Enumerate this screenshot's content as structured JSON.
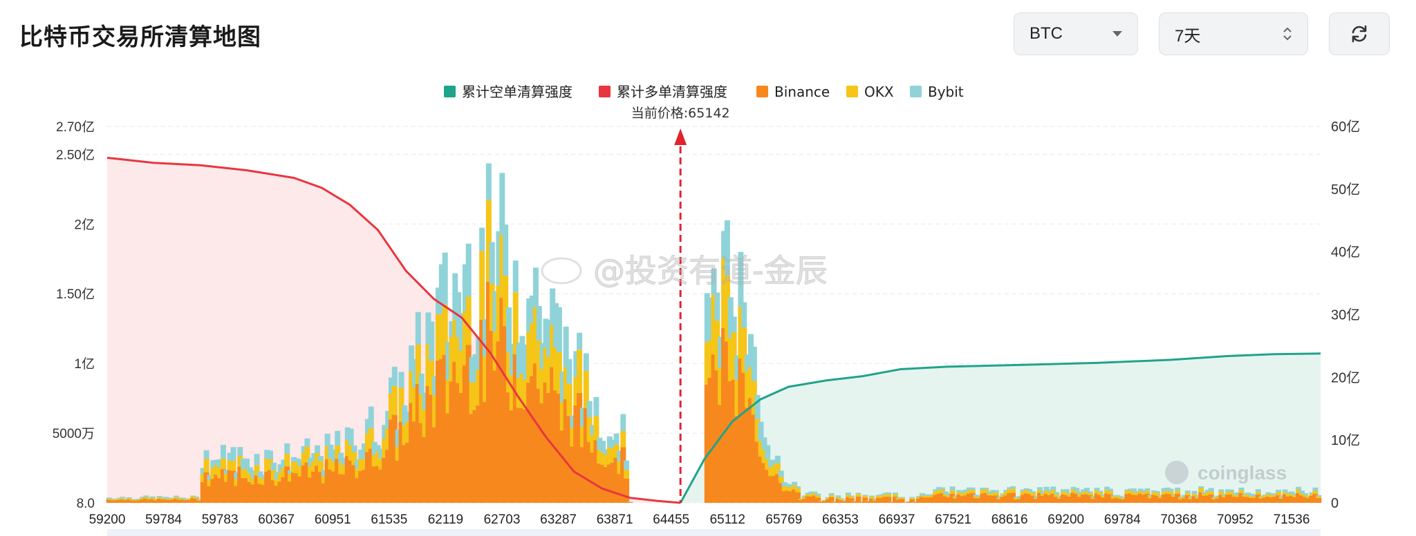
{
  "page": {
    "title": "比特币交易所清算地图",
    "symbol_select": {
      "value": "BTC",
      "icon": "chevron-down-icon"
    },
    "range_select": {
      "value": "7天",
      "icon": "updown-chevron-icon"
    },
    "refresh_button": {
      "icon": "refresh-icon"
    }
  },
  "watermark": {
    "text": "@投资有道-金辰",
    "icon": "weibo-icon"
  },
  "brand": {
    "text": "coinglass",
    "icon": "coinglass-logo-icon"
  },
  "colors": {
    "short_line": "#1fa38a",
    "long_line": "#e8363f",
    "binance": "#f7881e",
    "okx": "#f5c518",
    "bybit": "#8fd3d9",
    "long_area": "#fde8ea",
    "short_area": "#e6f4ef"
  },
  "chart_data": {
    "type": "bar",
    "title": "",
    "legend": [
      "累计空单清算强度",
      "累计多单清算强度",
      "Binance",
      "OKX",
      "Bybit"
    ],
    "legend_position": "top-center",
    "current_price_label": "当前价格:65142",
    "current_price": 65142,
    "x_tick_labels": [
      "59200",
      "59784",
      "59783",
      "60367",
      "60951",
      "61535",
      "62119",
      "62703",
      "63287",
      "63871",
      "64455",
      "65112",
      "65769",
      "66353",
      "66937",
      "67521",
      "68616",
      "69200",
      "69784",
      "70368",
      "70952",
      "71536"
    ],
    "x_tick_labels_note": "",
    "y_left_ticks": [
      "8.0",
      "5000万",
      "1亿",
      "1.50亿",
      "2亿",
      "2.50亿",
      "2.70亿"
    ],
    "y_left_range": [
      0,
      270000000
    ],
    "y_right_ticks": [
      "0",
      "10亿",
      "20亿",
      "30亿",
      "40亿",
      "50亿",
      "60亿"
    ],
    "y_right_range": [
      0,
      6000000000
    ],
    "grid": true,
    "bars_stacked": true,
    "bars_sample": {
      "x_price_range": [
        59000,
        72000
      ],
      "gap_range": [
        64600,
        65400
      ],
      "peak_left_price": 63150,
      "peak_left_total": 245000000,
      "peak_right_price": 65600,
      "peak_right_total": 213000000
    },
    "series": [
      {
        "name": "累计多单清算强度",
        "axis": "right",
        "x": [
          59000,
          59500,
          60000,
          60500,
          61000,
          61300,
          61600,
          61900,
          62200,
          62500,
          62800,
          63100,
          63400,
          63700,
          64000,
          64300,
          64600,
          64900,
          65142
        ],
        "values": [
          5500000000,
          5420000000,
          5380000000,
          5300000000,
          5180000000,
          5020000000,
          4750000000,
          4350000000,
          3700000000,
          3250000000,
          2950000000,
          2400000000,
          1700000000,
          1050000000,
          500000000,
          230000000,
          80000000,
          30000000,
          0
        ]
      },
      {
        "name": "累计空单清算强度",
        "axis": "right",
        "x": [
          65142,
          65400,
          65700,
          66000,
          66300,
          66700,
          67100,
          67500,
          68000,
          68800,
          69600,
          70400,
          71000,
          71500,
          72000
        ],
        "values": [
          0,
          700000000,
          1300000000,
          1650000000,
          1850000000,
          1950000000,
          2020000000,
          2130000000,
          2170000000,
          2200000000,
          2230000000,
          2280000000,
          2340000000,
          2370000000,
          2380000000
        ]
      }
    ]
  }
}
